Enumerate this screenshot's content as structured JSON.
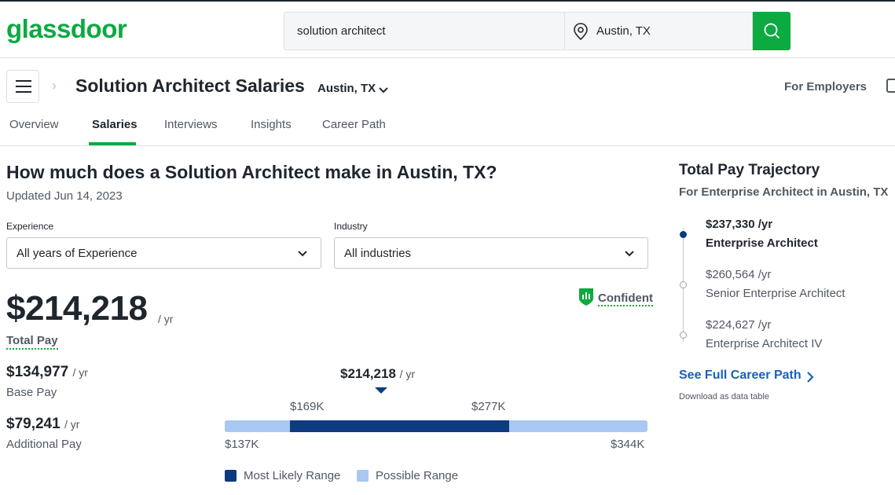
{
  "header": {
    "logo": "glassdoor",
    "search_value": "solution architect",
    "location_value": "Austin, TX",
    "for_employers": "For Employers"
  },
  "page": {
    "title": "Solution Architect Salaries",
    "location": "Austin, TX"
  },
  "tabs": [
    "Overview",
    "Salaries",
    "Interviews",
    "Insights",
    "Career Path"
  ],
  "main": {
    "heading": "How much does a Solution Architect make in Austin, TX?",
    "updated": "Updated Jun 14, 2023",
    "experience_label": "Experience",
    "experience_value": "All years of Experience",
    "industry_label": "Industry",
    "industry_value": "All industries",
    "total_pay_value": "$214,218",
    "per_year": "/ yr",
    "total_pay_label": "Total Pay",
    "confidence": "Confident",
    "base_pay_value": "$134,977",
    "base_pay_label": "Base Pay",
    "additional_pay_value": "$79,241",
    "additional_pay_label": "Additional Pay"
  },
  "range": {
    "median": "$214,218",
    "likely_low": "$169K",
    "likely_high": "$277K",
    "min": "$137K",
    "max": "$344K",
    "legend_likely": "Most Likely Range",
    "legend_possible": "Possible Range",
    "color_likely": "#0d3b7f",
    "color_possible": "#a9c8f1"
  },
  "trajectory": {
    "title": "Total Pay Trajectory",
    "subtitle": "For Enterprise Architect in Austin, TX",
    "items": [
      {
        "amount": "$237,330 /yr",
        "role": "Enterprise Architect"
      },
      {
        "amount": "$260,564 /yr",
        "role": "Senior Enterprise Architect"
      },
      {
        "amount": "$224,627 /yr",
        "role": "Enterprise Architect IV"
      }
    ],
    "see_full": "See Full Career Path",
    "download": "Download as data table"
  },
  "colors": {
    "brand": "#0caa41",
    "link": "#1861bf"
  }
}
